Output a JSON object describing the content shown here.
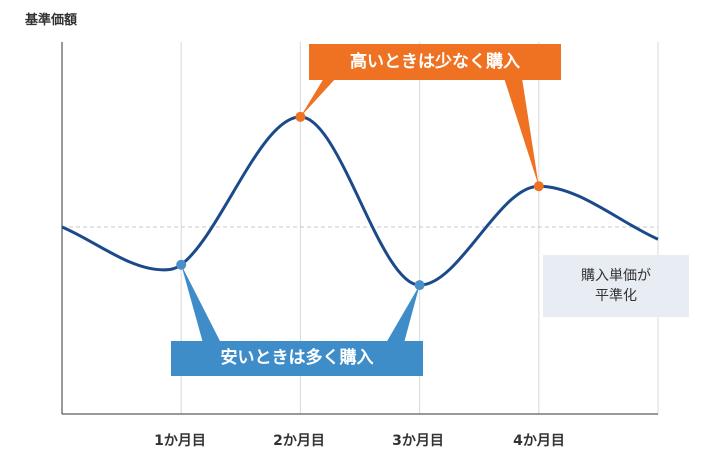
{
  "chart_data": {
    "type": "line",
    "ylabel": "基準価額",
    "xlabel": "",
    "categories": [
      "1か月目",
      "2か月目",
      "3か月目",
      "4か月目"
    ],
    "series": [
      {
        "x": [
          0,
          0.85,
          1,
          2,
          3,
          4,
          5
        ],
        "y": [
          0,
          -0.42,
          -0.37,
          1.08,
          -0.57,
          0.4,
          -0.12
        ]
      }
    ],
    "reference_line": 0,
    "highlight_points": [
      {
        "x": 1,
        "y": -0.37,
        "color": "#4a90c8"
      },
      {
        "x": 2,
        "y": 1.08,
        "color": "#ef7222"
      },
      {
        "x": 3,
        "y": -0.57,
        "color": "#4a90c8"
      },
      {
        "x": 4,
        "y": 0.4,
        "color": "#ef7222"
      }
    ],
    "annotations": {
      "high": "高いときは少なく購入",
      "low": "安いときは多く購入",
      "note_line1": "購入単価が",
      "note_line2": "平準化"
    },
    "colors": {
      "line": "#1b4a8a",
      "high": "#ef7222",
      "low": "#3e8dc8",
      "grid": "#d8d8d8",
      "note_bg": "#e8ecf3"
    },
    "grid": true
  }
}
